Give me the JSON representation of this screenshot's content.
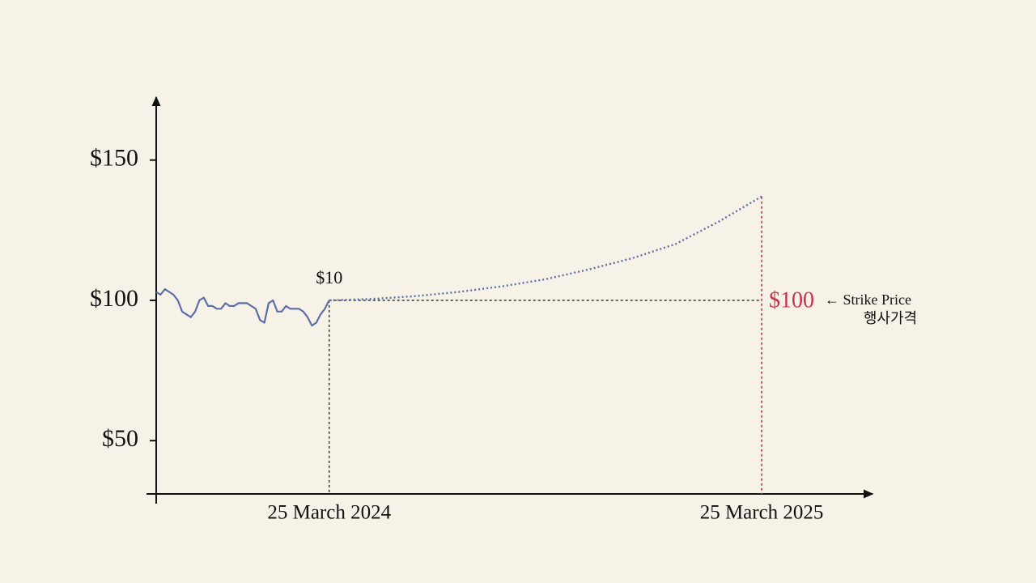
{
  "chart_data": {
    "type": "line",
    "x": [
      2023.83,
      2023.84,
      2023.85,
      2023.86,
      2023.87,
      2023.88,
      2023.89,
      2023.9,
      2023.91,
      2023.92,
      2023.93,
      2023.94,
      2023.95,
      2023.96,
      2023.97,
      2023.98,
      2023.99,
      2024.0,
      2024.01,
      2024.02,
      2024.03,
      2024.04,
      2024.05,
      2024.06,
      2024.07,
      2024.08,
      2024.09,
      2024.1,
      2024.11,
      2024.12,
      2024.13,
      2024.14,
      2024.15,
      2024.16,
      2024.17,
      2024.18,
      2024.19,
      2024.2,
      2024.21,
      2024.22,
      2024.23
    ],
    "series": [
      {
        "color": "#5f6fa6",
        "values": [
          103,
          102,
          104,
          103,
          102,
          100,
          96,
          95,
          94,
          96,
          100,
          101,
          98,
          98,
          97,
          97,
          99,
          98,
          98,
          99,
          99,
          99,
          98,
          97,
          93,
          92,
          99,
          100,
          96,
          96,
          98,
          97,
          97,
          97,
          96,
          94,
          91,
          92,
          95,
          97,
          100
        ]
      }
    ],
    "projection": {
      "color": "#5f6fa6",
      "x": [
        2024.23,
        2024.33,
        2024.43,
        2024.53,
        2024.63,
        2024.73,
        2024.83,
        2024.93,
        2025.03,
        2025.13,
        2025.23
      ],
      "values": [
        100,
        100.5,
        101.5,
        103,
        105,
        107.5,
        111,
        115,
        120,
        128,
        137
      ]
    },
    "point_label": "$10",
    "strike": {
      "value": 100,
      "label": "$100",
      "color": "#c8324a",
      "note": "← Strike Price",
      "note_ko": "행사가격"
    },
    "xlim": [
      2023.83,
      2025.49
    ],
    "ylim": [
      31,
      173
    ],
    "xticks": [
      {
        "value": 2024.23,
        "label": "25 March 2024"
      },
      {
        "value": 2025.23,
        "label": "25 March 2025"
      }
    ],
    "yticks": [
      {
        "value": 50,
        "label": "$50"
      },
      {
        "value": 100,
        "label": "$100"
      },
      {
        "value": 150,
        "label": "$150"
      }
    ]
  }
}
